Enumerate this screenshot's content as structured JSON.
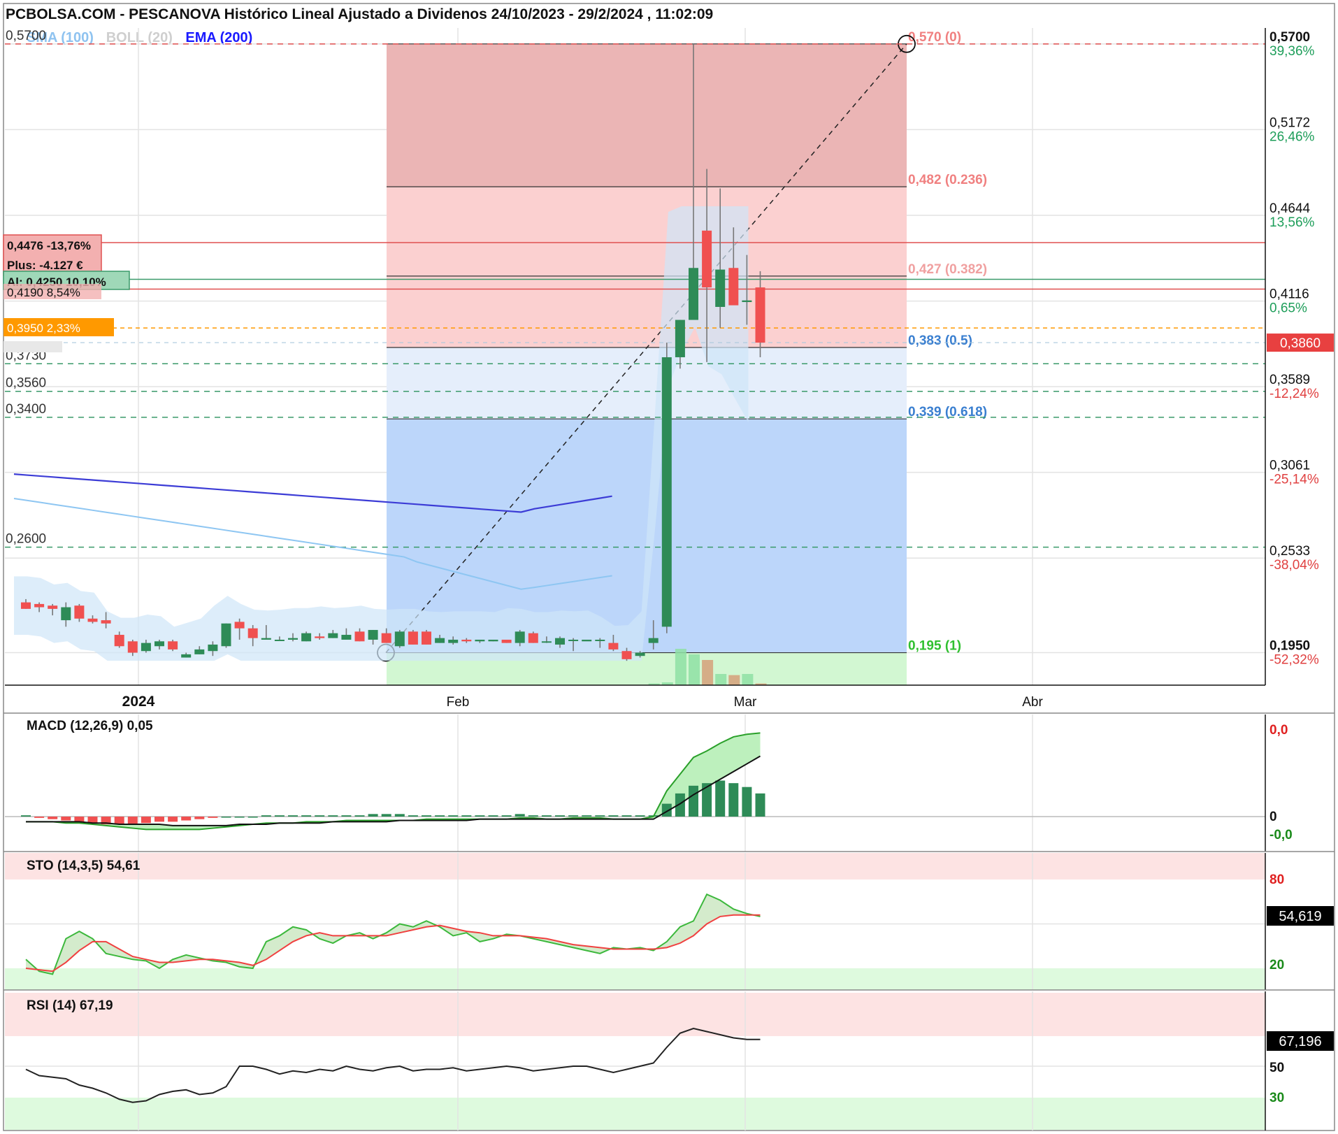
{
  "title": "PCBOLSA.COM - PESCANOVA Histórico Lineal Ajustado a Dividenos 24/10/2023 - 29/2/2024 , 11:02:09",
  "legend": [
    {
      "label": "SMA (100)",
      "color": "#8fc3f0"
    },
    {
      "label": "BOLL (20)",
      "color": "#cfcfcf"
    },
    {
      "label": "EMA (200)",
      "color": "#1a1aff"
    }
  ],
  "colors": {
    "up": "#2e8b57",
    "down": "#f05050",
    "grid": "#e3e3e3",
    "ema": "#3a3ad8",
    "sma": "#9fd0f5"
  },
  "chart_data": [
    {
      "type": "candlestick",
      "name": "price",
      "x_ticks": [
        "2024",
        "Feb",
        "Mar",
        "Abr"
      ],
      "ylim": [
        0.175,
        0.585
      ],
      "y_ticks_right": [
        {
          "value": "0,5700",
          "pct": "39,36%",
          "pct_color": "#1e9e5a",
          "bold": true
        },
        {
          "value": "0,5172",
          "pct": "26,46%",
          "pct_color": "#1e9e5a"
        },
        {
          "value": "0,4644",
          "pct": "13,56%",
          "pct_color": "#1e9e5a"
        },
        {
          "value": "0,4116",
          "pct": "0,65%",
          "pct_color": "#1e9e5a"
        },
        {
          "value": "0,3589",
          "pct": "-12,24%",
          "pct_color": "#e04040"
        },
        {
          "value": "0,3061",
          "pct": "-25,14%",
          "pct_color": "#e04040"
        },
        {
          "value": "0,2533",
          "pct": "-38,04%",
          "pct_color": "#e04040"
        },
        {
          "value": "0,1950",
          "pct": "-52,32%",
          "pct_color": "#e04040",
          "bold": true
        }
      ],
      "last_price": "0,3860",
      "horizontal_levels": [
        {
          "label": "0,5700",
          "value": 0.57,
          "color": "#e05050",
          "style": "dashed"
        },
        {
          "label": "0,3730",
          "value": 0.373,
          "color": "#3a9a6a",
          "style": "dashed"
        },
        {
          "label": "0,3560",
          "value": 0.356,
          "color": "#3a9a6a",
          "style": "dashed"
        },
        {
          "label": "0,3400",
          "value": 0.34,
          "color": "#3a9a6a",
          "style": "dashed"
        },
        {
          "label": "0,2600",
          "value": 0.26,
          "color": "#3a9a6a",
          "style": "dashed"
        }
      ],
      "position_boxes": [
        {
          "text": "0,4476  -13,76%",
          "value": 0.4476,
          "color": "#f3b0b0",
          "border": "#e05050"
        },
        {
          "text": "Plus: -4.127 €",
          "value": 0.436,
          "color": "#f3b0b0",
          "border": "#e05050"
        },
        {
          "text": "Al: 0,4250  10,10%",
          "value": 0.425,
          "color": "#9fd8b8",
          "border": "#3a9a6a"
        },
        {
          "text": "0,4190  8,54%",
          "value": 0.419,
          "color": "#f3b0b0",
          "border": "#e05050"
        },
        {
          "text": "0,3950  2,33%",
          "value": 0.395,
          "color": "#ff9900",
          "border": "#ff9900",
          "text_color": "#ffffff"
        }
      ],
      "fibonacci": [
        {
          "label": "0,570 (0)",
          "value": 0.57,
          "color": "#f08080"
        },
        {
          "label": "0,482 (0.236)",
          "value": 0.482,
          "color": "#f08080"
        },
        {
          "label": "0,427 (0.382)",
          "value": 0.427,
          "color": "#f0a0a0"
        },
        {
          "label": "0,383 (0.5)",
          "value": 0.383,
          "color": "#3a7fd0"
        },
        {
          "label": "0,339 (0.618)",
          "value": 0.339,
          "color": "#3a7fd0"
        },
        {
          "label": "0,195 (1)",
          "value": 0.195,
          "color": "#30c030"
        }
      ],
      "candles": [
        {
          "o": 0.226,
          "h": 0.228,
          "l": 0.222,
          "c": 0.222
        },
        {
          "o": 0.225,
          "h": 0.226,
          "l": 0.22,
          "c": 0.223
        },
        {
          "o": 0.224,
          "h": 0.225,
          "l": 0.218,
          "c": 0.222
        },
        {
          "o": 0.215,
          "h": 0.226,
          "l": 0.211,
          "c": 0.223
        },
        {
          "o": 0.224,
          "h": 0.225,
          "l": 0.214,
          "c": 0.216
        },
        {
          "o": 0.216,
          "h": 0.218,
          "l": 0.213,
          "c": 0.214
        },
        {
          "o": 0.215,
          "h": 0.22,
          "l": 0.21,
          "c": 0.213
        },
        {
          "o": 0.206,
          "h": 0.208,
          "l": 0.198,
          "c": 0.199
        },
        {
          "o": 0.202,
          "h": 0.203,
          "l": 0.193,
          "c": 0.195
        },
        {
          "o": 0.196,
          "h": 0.203,
          "l": 0.195,
          "c": 0.201
        },
        {
          "o": 0.199,
          "h": 0.203,
          "l": 0.197,
          "c": 0.202
        },
        {
          "o": 0.202,
          "h": 0.203,
          "l": 0.196,
          "c": 0.197
        },
        {
          "o": 0.192,
          "h": 0.195,
          "l": 0.192,
          "c": 0.194
        },
        {
          "o": 0.194,
          "h": 0.199,
          "l": 0.194,
          "c": 0.197
        },
        {
          "o": 0.196,
          "h": 0.202,
          "l": 0.193,
          "c": 0.2
        },
        {
          "o": 0.199,
          "h": 0.213,
          "l": 0.198,
          "c": 0.213
        },
        {
          "o": 0.214,
          "h": 0.216,
          "l": 0.203,
          "c": 0.21
        },
        {
          "o": 0.21,
          "h": 0.212,
          "l": 0.199,
          "c": 0.204
        },
        {
          "o": 0.203,
          "h": 0.212,
          "l": 0.203,
          "c": 0.204
        },
        {
          "o": 0.203,
          "h": 0.205,
          "l": 0.203,
          "c": 0.203
        },
        {
          "o": 0.203,
          "h": 0.207,
          "l": 0.202,
          "c": 0.204
        },
        {
          "o": 0.202,
          "h": 0.208,
          "l": 0.202,
          "c": 0.207
        },
        {
          "o": 0.205,
          "h": 0.207,
          "l": 0.203,
          "c": 0.204
        },
        {
          "o": 0.204,
          "h": 0.209,
          "l": 0.204,
          "c": 0.207
        },
        {
          "o": 0.203,
          "h": 0.21,
          "l": 0.203,
          "c": 0.206
        },
        {
          "o": 0.208,
          "h": 0.21,
          "l": 0.202,
          "c": 0.202
        },
        {
          "o": 0.203,
          "h": 0.209,
          "l": 0.2,
          "c": 0.209
        },
        {
          "o": 0.207,
          "h": 0.21,
          "l": 0.201,
          "c": 0.201
        },
        {
          "o": 0.199,
          "h": 0.209,
          "l": 0.198,
          "c": 0.208
        },
        {
          "o": 0.208,
          "h": 0.209,
          "l": 0.2,
          "c": 0.2
        },
        {
          "o": 0.208,
          "h": 0.209,
          "l": 0.2,
          "c": 0.2
        },
        {
          "o": 0.201,
          "h": 0.206,
          "l": 0.201,
          "c": 0.204
        },
        {
          "o": 0.201,
          "h": 0.205,
          "l": 0.2,
          "c": 0.203
        },
        {
          "o": 0.203,
          "h": 0.204,
          "l": 0.201,
          "c": 0.202
        },
        {
          "o": 0.202,
          "h": 0.203,
          "l": 0.201,
          "c": 0.203
        },
        {
          "o": 0.202,
          "h": 0.203,
          "l": 0.202,
          "c": 0.203
        },
        {
          "o": 0.203,
          "h": 0.203,
          "l": 0.201,
          "c": 0.201
        },
        {
          "o": 0.201,
          "h": 0.209,
          "l": 0.199,
          "c": 0.208
        },
        {
          "o": 0.207,
          "h": 0.208,
          "l": 0.201,
          "c": 0.201
        },
        {
          "o": 0.202,
          "h": 0.205,
          "l": 0.201,
          "c": 0.202
        },
        {
          "o": 0.2,
          "h": 0.205,
          "l": 0.198,
          "c": 0.204
        },
        {
          "o": 0.203,
          "h": 0.204,
          "l": 0.196,
          "c": 0.203
        },
        {
          "o": 0.202,
          "h": 0.203,
          "l": 0.203,
          "c": 0.203
        },
        {
          "o": 0.203,
          "h": 0.204,
          "l": 0.198,
          "c": 0.203
        },
        {
          "o": 0.201,
          "h": 0.206,
          "l": 0.196,
          "c": 0.197
        },
        {
          "o": 0.196,
          "h": 0.198,
          "l": 0.19,
          "c": 0.191
        },
        {
          "o": 0.193,
          "h": 0.196,
          "l": 0.192,
          "c": 0.195
        },
        {
          "o": 0.201,
          "h": 0.215,
          "l": 0.197,
          "c": 0.204
        },
        {
          "o": 0.211,
          "h": 0.386,
          "l": 0.207,
          "c": 0.377
        },
        {
          "o": 0.377,
          "h": 0.4,
          "l": 0.37,
          "c": 0.4
        },
        {
          "o": 0.4,
          "h": 0.57,
          "l": 0.4,
          "c": 0.432
        },
        {
          "o": 0.455,
          "h": 0.493,
          "l": 0.374,
          "c": 0.42
        },
        {
          "o": 0.408,
          "h": 0.481,
          "l": 0.395,
          "c": 0.431
        },
        {
          "o": 0.432,
          "h": 0.457,
          "l": 0.411,
          "c": 0.409
        },
        {
          "o": 0.411,
          "h": 0.44,
          "l": 0.397,
          "c": 0.412
        },
        {
          "o": 0.42,
          "h": 0.43,
          "l": 0.377,
          "c": 0.386
        }
      ]
    },
    {
      "type": "bar",
      "name": "MACD",
      "label": "MACD (12,26,9)",
      "value": "0,05",
      "y_ticks": [
        "0,0",
        "0",
        "-0,0"
      ],
      "histogram": [
        0.001,
        -0.001,
        -0.002,
        -0.003,
        -0.004,
        -0.005,
        -0.006,
        -0.006,
        -0.006,
        -0.005,
        -0.004,
        -0.004,
        -0.003,
        -0.002,
        -0.001,
        0.0,
        0.0,
        0.0,
        0.001,
        0.001,
        0.001,
        0.001,
        0.001,
        0.001,
        0.001,
        0.001,
        0.002,
        0.002,
        0.002,
        0.001,
        0.001,
        0.001,
        0.001,
        0.001,
        0.001,
        0.001,
        0.001,
        0.002,
        0.001,
        0.001,
        0.001,
        0.001,
        0.001,
        0.001,
        0.001,
        0.001,
        0.001,
        0.001,
        0.01,
        0.018,
        0.024,
        0.026,
        0.028,
        0.026,
        0.023,
        0.018
      ],
      "macd_line": [
        -0.004,
        -0.004,
        -0.004,
        -0.005,
        -0.005,
        -0.006,
        -0.007,
        -0.008,
        -0.009,
        -0.01,
        -0.01,
        -0.01,
        -0.01,
        -0.01,
        -0.009,
        -0.008,
        -0.007,
        -0.006,
        -0.005,
        -0.005,
        -0.005,
        -0.004,
        -0.004,
        -0.004,
        -0.003,
        -0.003,
        -0.003,
        -0.003,
        -0.003,
        -0.003,
        -0.002,
        -0.002,
        -0.002,
        -0.002,
        -0.002,
        -0.002,
        -0.002,
        -0.001,
        -0.001,
        -0.002,
        -0.002,
        -0.001,
        -0.001,
        -0.001,
        -0.002,
        -0.002,
        -0.002,
        0.0,
        0.02,
        0.033,
        0.046,
        0.051,
        0.057,
        0.062,
        0.064,
        0.065
      ],
      "signal_line": [
        -0.004,
        -0.004,
        -0.004,
        -0.004,
        -0.004,
        -0.005,
        -0.005,
        -0.006,
        -0.006,
        -0.006,
        -0.006,
        -0.007,
        -0.007,
        -0.007,
        -0.007,
        -0.007,
        -0.006,
        -0.006,
        -0.006,
        -0.005,
        -0.005,
        -0.005,
        -0.005,
        -0.004,
        -0.004,
        -0.004,
        -0.004,
        -0.004,
        -0.003,
        -0.003,
        -0.003,
        -0.003,
        -0.003,
        -0.003,
        -0.002,
        -0.002,
        -0.002,
        -0.002,
        -0.002,
        -0.002,
        -0.002,
        -0.002,
        -0.002,
        -0.002,
        -0.002,
        -0.002,
        -0.002,
        -0.002,
        0.004,
        0.01,
        0.017,
        0.023,
        0.029,
        0.035,
        0.041,
        0.047
      ]
    },
    {
      "type": "line",
      "name": "STO",
      "label": "STO (14,3,5)",
      "value": "54,61",
      "last_value": "54,619",
      "y_ticks": [
        "80",
        "20"
      ],
      "k": [
        26,
        18,
        16,
        40,
        45,
        40,
        30,
        28,
        26,
        25,
        20,
        26,
        29,
        27,
        25,
        24,
        21,
        20,
        38,
        42,
        48,
        46,
        40,
        37,
        42,
        44,
        40,
        44,
        50,
        48,
        52,
        48,
        42,
        44,
        38,
        40,
        43,
        42,
        40,
        38,
        36,
        34,
        32,
        30,
        34,
        33,
        34,
        32,
        38,
        48,
        52,
        70,
        66,
        60,
        57,
        55
      ],
      "d": [
        20,
        19,
        18,
        24,
        32,
        38,
        38,
        33,
        28,
        26,
        24,
        24,
        25,
        26,
        26,
        25,
        24,
        22,
        26,
        32,
        38,
        42,
        44,
        42,
        42,
        42,
        42,
        42,
        44,
        46,
        48,
        49,
        47,
        45,
        44,
        42,
        42,
        42,
        41,
        40,
        38,
        36,
        35,
        34,
        33,
        33,
        33,
        33,
        34,
        37,
        42,
        50,
        55,
        56,
        56,
        56
      ]
    },
    {
      "type": "line",
      "name": "RSI",
      "label": "RSI (14)",
      "value": "67,19",
      "last_value": "67,196",
      "y_ticks": [
        "50",
        "30"
      ],
      "rsi": [
        48,
        44,
        43,
        42,
        38,
        36,
        33,
        29,
        27,
        28,
        32,
        34,
        35,
        32,
        33,
        37,
        50,
        50,
        48,
        45,
        47,
        46,
        48,
        47,
        50,
        48,
        47,
        49,
        50,
        47,
        48,
        48,
        49,
        47,
        48,
        49,
        50,
        49,
        47,
        48,
        49,
        50,
        50,
        48,
        46,
        48,
        50,
        52,
        62,
        71,
        74,
        72,
        70,
        68,
        67,
        67
      ]
    }
  ]
}
